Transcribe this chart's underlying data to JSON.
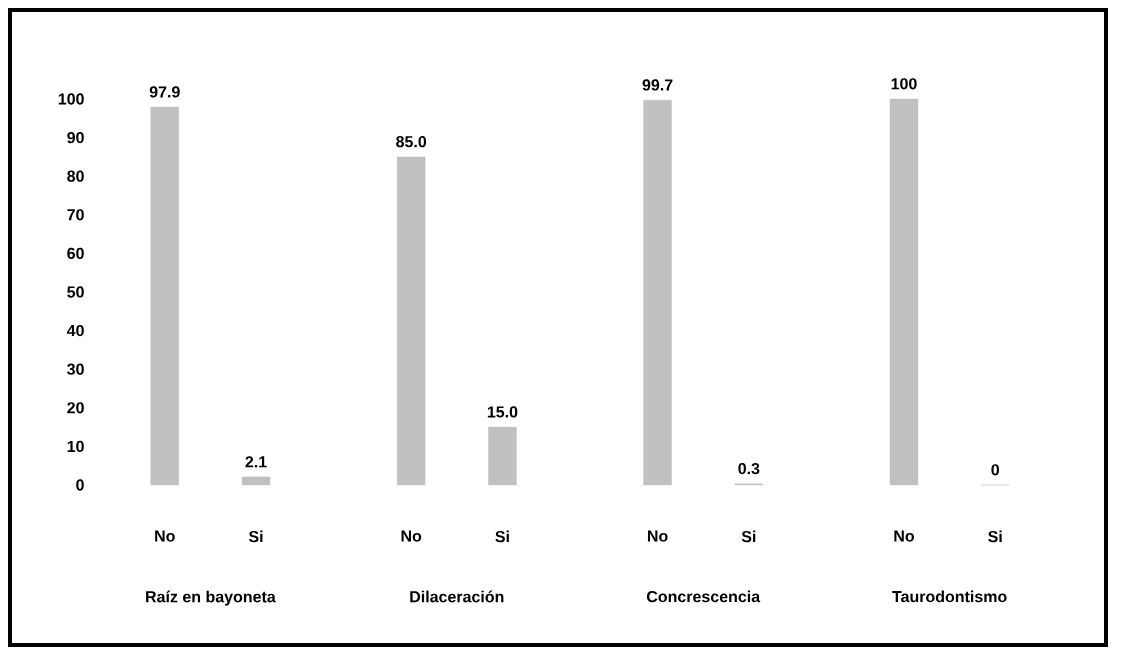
{
  "chart_data": {
    "type": "bar",
    "categories": [
      "No",
      "Si",
      "No",
      "Si",
      "No",
      "Si",
      "No",
      "Si"
    ],
    "values": [
      97.9,
      2.1,
      85.0,
      15.0,
      99.7,
      0.3,
      100,
      0
    ],
    "value_labels": [
      "97.9",
      "2.1",
      "85.0",
      "15.0",
      "99.7",
      "0.3",
      "100",
      "0"
    ],
    "color": "#c0c0c0",
    "ylim": [
      0,
      100
    ],
    "yticks": [
      0,
      10,
      20,
      30,
      40,
      50,
      60,
      70,
      80,
      90,
      100
    ],
    "annotations": [
      "Raíz en bayoneta",
      "Dilaceración",
      "Concrescencia",
      "Taurodontismo"
    ]
  }
}
